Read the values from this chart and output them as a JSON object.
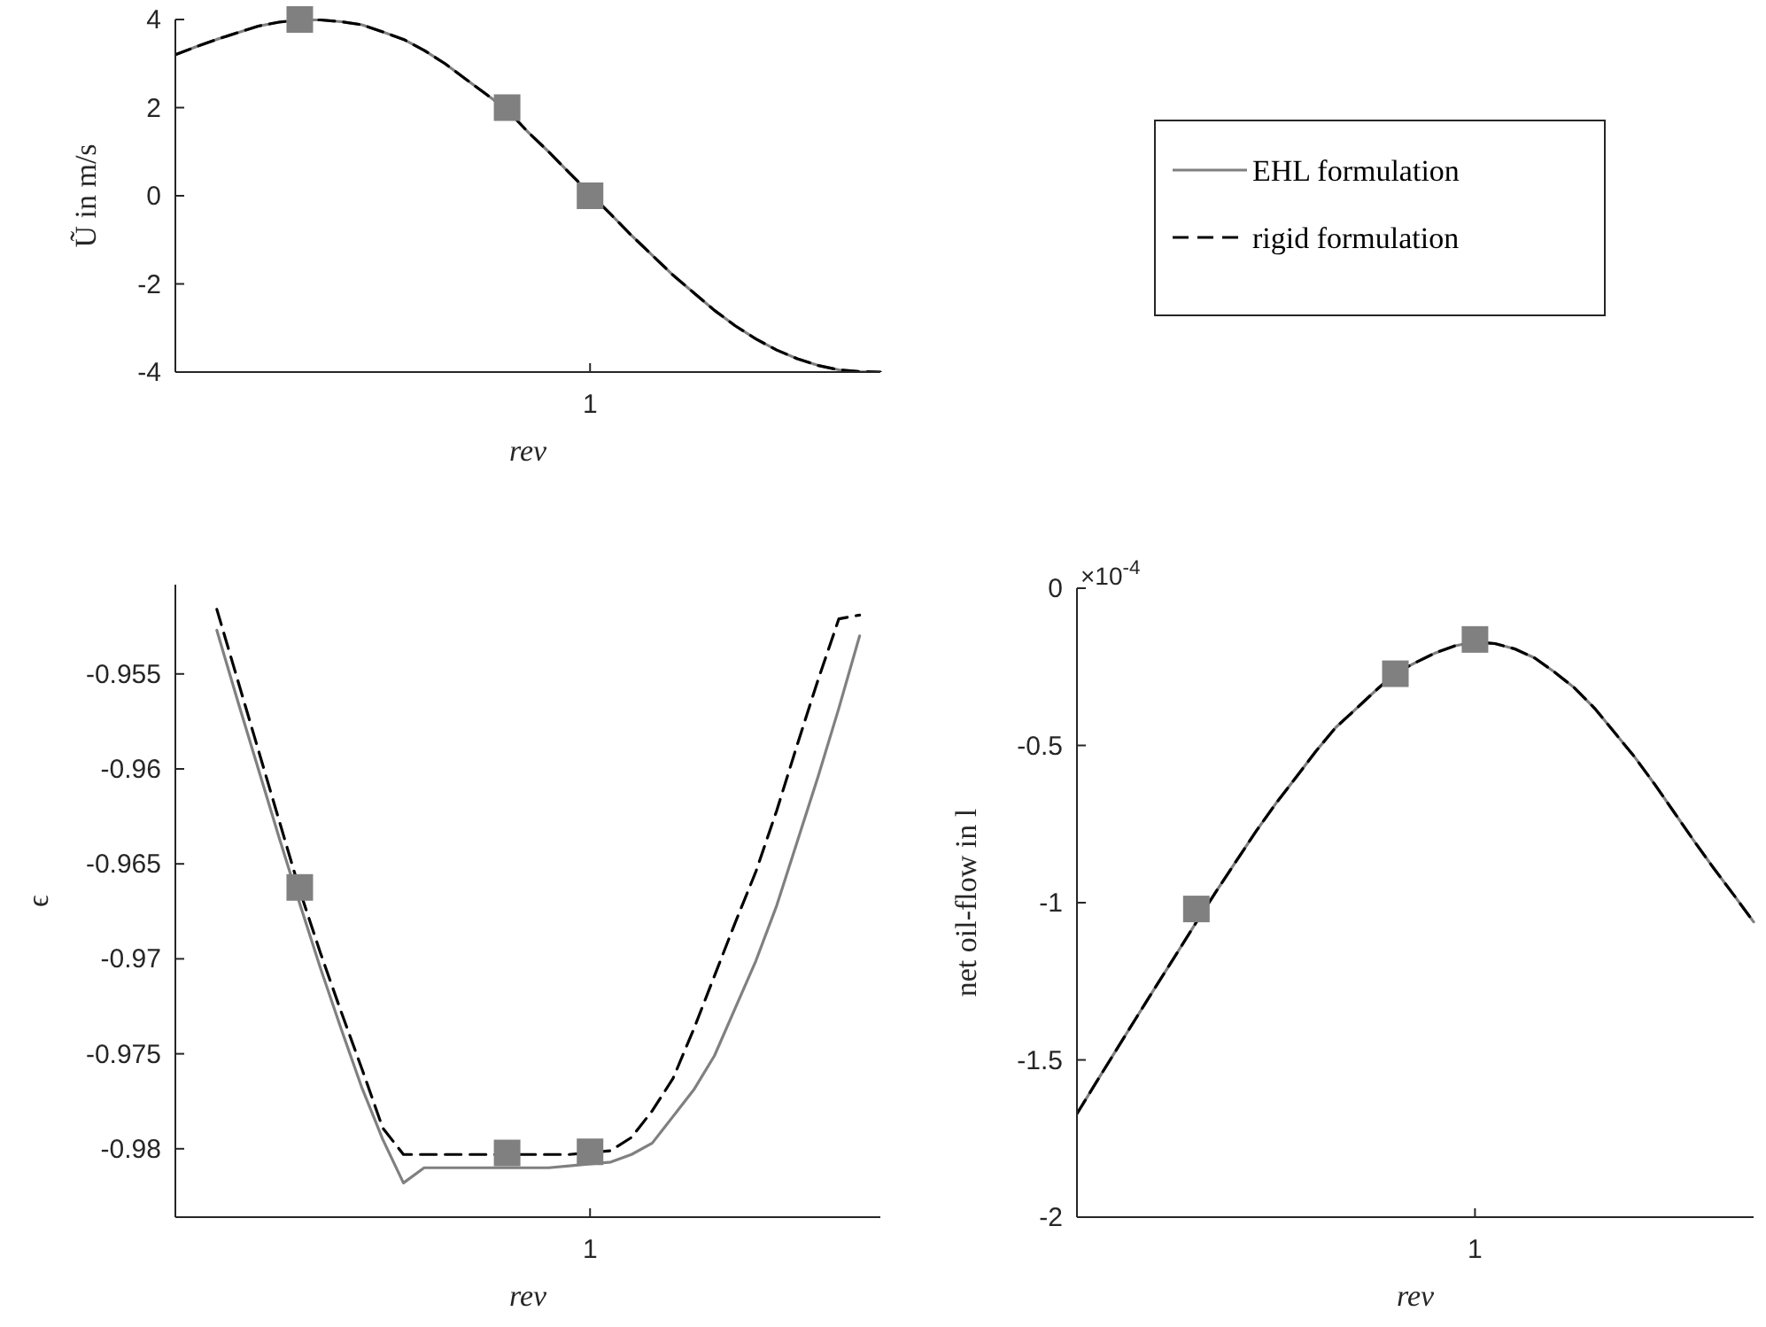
{
  "chart_data": [
    {
      "type": "line",
      "ylabel": "Ũ in m/s",
      "xlabel": "rev",
      "categories": [
        null,
        null,
        null,
        null,
        null,
        null,
        null,
        null,
        null,
        null,
        null,
        null,
        null,
        null,
        null,
        null,
        null,
        null,
        null,
        null,
        "1",
        null,
        null,
        null,
        null,
        null,
        null,
        null,
        null,
        null,
        null,
        null,
        null,
        null,
        null
      ],
      "ylim": [
        -4,
        4
      ],
      "yticks": [
        -4,
        -2,
        0,
        2,
        4
      ],
      "legend": "right",
      "series": [
        {
          "name": "EHL formulation",
          "color": "#808080",
          "line_style": "solid",
          "values": [
            3.2,
            3.38,
            3.55,
            3.7,
            3.85,
            3.94,
            3.99,
            3.99,
            3.95,
            3.88,
            3.72,
            3.55,
            3.3,
            3.0,
            2.65,
            2.3,
            1.95,
            1.45,
            1.0,
            0.52,
            0.05,
            -0.42,
            -0.9,
            -1.35,
            -1.8,
            -2.2,
            -2.6,
            -2.95,
            -3.25,
            -3.5,
            -3.7,
            -3.85,
            -3.95,
            -3.99,
            -4.0
          ]
        },
        {
          "name": "rigid formulation",
          "color": "#000000",
          "line_style": "dashed",
          "values": [
            3.2,
            3.38,
            3.55,
            3.7,
            3.85,
            3.94,
            3.99,
            3.99,
            3.95,
            3.88,
            3.72,
            3.55,
            3.3,
            3.0,
            2.65,
            2.3,
            1.95,
            1.45,
            1.0,
            0.52,
            0.05,
            -0.42,
            -0.9,
            -1.35,
            -1.8,
            -2.2,
            -2.6,
            -2.95,
            -3.25,
            -3.5,
            -3.7,
            -3.85,
            -3.95,
            -3.99,
            -4.0
          ]
        },
        {
          "type": "scatter",
          "marker": "square",
          "color": "#808080",
          "values": [
            null,
            null,
            null,
            null,
            null,
            null,
            4,
            null,
            null,
            null,
            null,
            null,
            null,
            null,
            null,
            null,
            2,
            null,
            null,
            null,
            0,
            null,
            null,
            null,
            null,
            null,
            null,
            null,
            null,
            null,
            null,
            null,
            null,
            null,
            null
          ]
        }
      ]
    },
    {
      "type": "line",
      "ylabel": "ϵ",
      "xlabel": "rev",
      "categories": [
        null,
        null,
        null,
        null,
        null,
        null,
        null,
        null,
        null,
        null,
        null,
        null,
        null,
        null,
        null,
        null,
        null,
        null,
        null,
        null,
        "1",
        null,
        null,
        null,
        null,
        null,
        null,
        null,
        null,
        null,
        null,
        null,
        null,
        null,
        null
      ],
      "ylim": [
        -0.9836,
        -0.9503
      ],
      "yticks": [
        -0.98,
        -0.975,
        -0.97,
        -0.965,
        -0.96,
        -0.955
      ],
      "series": [
        {
          "color": "#808080",
          "line_style": "solid",
          "values": [
            null,
            null,
            -0.9527,
            -0.9564,
            -0.96,
            -0.9636,
            -0.9671,
            -0.9705,
            -0.9737,
            -0.9768,
            -0.9795,
            -0.9818,
            -0.981,
            -0.981,
            -0.981,
            -0.981,
            -0.981,
            -0.981,
            -0.981,
            -0.9809,
            -0.9808,
            -0.9807,
            -0.9803,
            -0.9797,
            -0.9783,
            -0.9769,
            -0.9751,
            -0.9726,
            -0.9701,
            -0.9672,
            -0.9638,
            -0.9604,
            -0.9568,
            -0.953,
            null
          ]
        },
        {
          "color": "#000000",
          "line_style": "dashed",
          "values": [
            null,
            null,
            -0.9516,
            -0.9553,
            -0.959,
            -0.9627,
            -0.9664,
            -0.9697,
            -0.9728,
            -0.9758,
            -0.9789,
            -0.9803,
            -0.9803,
            -0.9803,
            -0.9803,
            -0.9803,
            -0.9803,
            -0.9803,
            -0.9803,
            -0.9803,
            -0.9802,
            -0.9801,
            -0.9794,
            -0.978,
            -0.9763,
            -0.9737,
            -0.9709,
            -0.9681,
            -0.9654,
            -0.9622,
            -0.9587,
            -0.9553,
            -0.9521,
            -0.9519,
            null
          ]
        },
        {
          "type": "scatter",
          "marker": "square",
          "color": "#808080",
          "values": [
            null,
            null,
            null,
            null,
            null,
            null,
            -0.96624,
            null,
            null,
            null,
            null,
            null,
            null,
            null,
            null,
            null,
            -0.98022,
            null,
            null,
            null,
            -0.98016,
            null,
            null,
            null,
            null,
            null,
            null,
            null,
            null,
            null,
            null,
            null,
            null,
            null,
            null
          ]
        }
      ]
    },
    {
      "type": "line",
      "ylabel": "net oil-flow in l",
      "xlabel": "rev",
      "annotations": [
        "×10$^{-4}$"
      ],
      "categories": [
        null,
        null,
        null,
        null,
        null,
        null,
        null,
        null,
        null,
        null,
        null,
        null,
        null,
        null,
        null,
        null,
        null,
        null,
        null,
        null,
        "1",
        null,
        null,
        null,
        null,
        null,
        null,
        null,
        null,
        null,
        null,
        null,
        null,
        null,
        null
      ],
      "ylim": [
        -2,
        0
      ],
      "yticks": [
        -2,
        -1.5,
        -1,
        -0.5,
        0
      ],
      "series": [
        {
          "color": "#808080",
          "line_style": "solid",
          "values": [
            -1.671,
            -1.568,
            -1.466,
            -1.364,
            -1.263,
            -1.163,
            -1.062,
            -0.964,
            -0.868,
            -0.773,
            -0.684,
            -0.602,
            -0.519,
            -0.443,
            -0.385,
            -0.326,
            -0.27,
            -0.237,
            -0.206,
            -0.183,
            -0.171,
            -0.176,
            -0.193,
            -0.222,
            -0.267,
            -0.317,
            -0.381,
            -0.458,
            -0.535,
            -0.621,
            -0.712,
            -0.803,
            -0.891,
            -0.975,
            -1.061
          ]
        },
        {
          "color": "#000000",
          "line_style": "dashed",
          "values": [
            -1.671,
            -1.568,
            -1.466,
            -1.364,
            -1.263,
            -1.163,
            -1.062,
            -0.964,
            -0.868,
            -0.773,
            -0.684,
            -0.602,
            -0.519,
            -0.443,
            -0.385,
            -0.326,
            -0.27,
            -0.237,
            -0.206,
            -0.183,
            -0.171,
            -0.176,
            -0.193,
            -0.222,
            -0.267,
            -0.317,
            -0.381,
            -0.458,
            -0.535,
            -0.621,
            -0.712,
            -0.803,
            -0.891,
            -0.975,
            -1.061
          ]
        },
        {
          "type": "scatter",
          "marker": "square",
          "color": "#808080",
          "values": [
            null,
            null,
            null,
            null,
            null,
            null,
            -1.02,
            null,
            null,
            null,
            null,
            null,
            null,
            null,
            null,
            null,
            -0.272,
            null,
            null,
            null,
            -0.163,
            null,
            null,
            null,
            null,
            null,
            null,
            null,
            null,
            null,
            null,
            null,
            null,
            null,
            null
          ]
        }
      ]
    }
  ]
}
